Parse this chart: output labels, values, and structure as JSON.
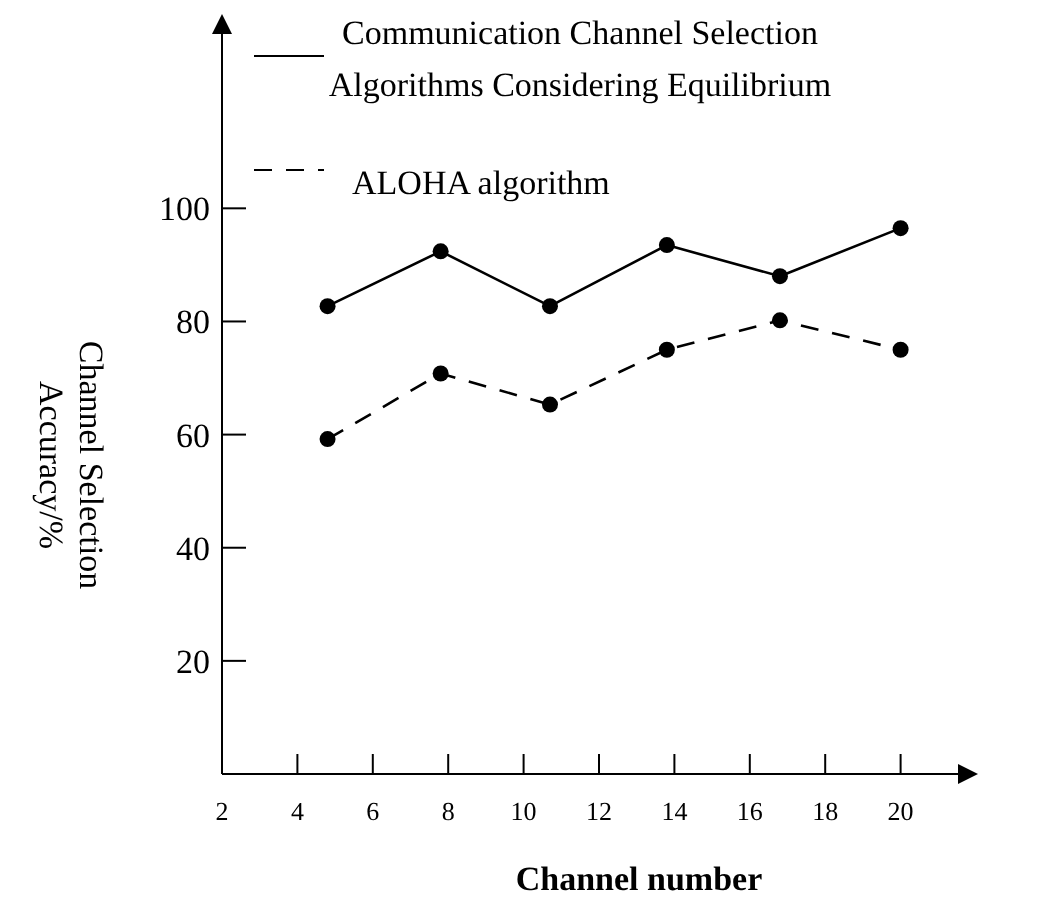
{
  "chart_data": {
    "type": "line",
    "xlabel": "Channel number",
    "ylabel": "Channel Selection\nAccuracy/%",
    "x": [
      4.8,
      7.8,
      10.7,
      13.8,
      16.8,
      20
    ],
    "xlim": [
      2,
      22
    ],
    "xticks": [
      2,
      4,
      6,
      8,
      10,
      12,
      14,
      16,
      18,
      20
    ],
    "ylim": [
      0,
      134
    ],
    "yticks": [
      20,
      40,
      60,
      80,
      100
    ],
    "marker": "circle",
    "legend": "top",
    "grid": false,
    "series": [
      {
        "name": "Communication Channel Selection\nAlgorithms Considering Equilibrium",
        "color": "#000000",
        "line_style": "solid",
        "values": [
          82.7,
          92.4,
          82.7,
          93.5,
          88,
          96.5
        ]
      },
      {
        "name": "ALOHA algorithm",
        "color": "#000000",
        "line_style": "dashed",
        "values": [
          59.2,
          70.8,
          65.3,
          75,
          80.2,
          75
        ]
      }
    ]
  }
}
